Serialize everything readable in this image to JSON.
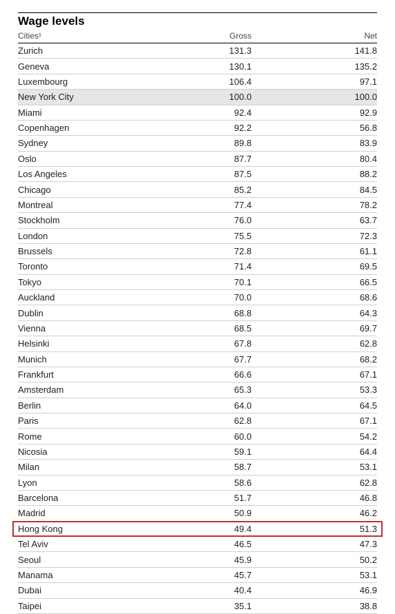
{
  "title": "Wage levels",
  "columns": {
    "city": "Cities¹",
    "gross": "Gross",
    "net": "Net"
  },
  "highlight_bg": "#e6e6e6",
  "box_border": "#c03030",
  "rows": [
    {
      "city": "Zurich",
      "gross": "131.3",
      "net": "141.8"
    },
    {
      "city": "Geneva",
      "gross": "130.1",
      "net": "135.2"
    },
    {
      "city": "Luxembourg",
      "gross": "106.4",
      "net": "97.1"
    },
    {
      "city": "New York City",
      "gross": "100.0",
      "net": "100.0",
      "highlighted": true
    },
    {
      "city": "Miami",
      "gross": "92.4",
      "net": "92.9"
    },
    {
      "city": "Copenhagen",
      "gross": "92.2",
      "net": "56.8"
    },
    {
      "city": "Sydney",
      "gross": "89.8",
      "net": "83.9"
    },
    {
      "city": "Oslo",
      "gross": "87.7",
      "net": "80.4"
    },
    {
      "city": "Los Angeles",
      "gross": "87.5",
      "net": "88.2"
    },
    {
      "city": "Chicago",
      "gross": "85.2",
      "net": "84.5"
    },
    {
      "city": "Montreal",
      "gross": "77.4",
      "net": "78.2"
    },
    {
      "city": "Stockholm",
      "gross": "76.0",
      "net": "63.7"
    },
    {
      "city": "London",
      "gross": "75.5",
      "net": "72.3"
    },
    {
      "city": "Brussels",
      "gross": "72.8",
      "net": "61.1"
    },
    {
      "city": "Toronto",
      "gross": "71.4",
      "net": "69.5"
    },
    {
      "city": "Tokyo",
      "gross": "70.1",
      "net": "66.5"
    },
    {
      "city": "Auckland",
      "gross": "70.0",
      "net": "68.6"
    },
    {
      "city": "Dublin",
      "gross": "68.8",
      "net": "64.3"
    },
    {
      "city": "Vienna",
      "gross": "68.5",
      "net": "69.7"
    },
    {
      "city": "Helsinki",
      "gross": "67.8",
      "net": "62.8"
    },
    {
      "city": "Munich",
      "gross": "67.7",
      "net": "68.2"
    },
    {
      "city": "Frankfurt",
      "gross": "66.6",
      "net": "67.1"
    },
    {
      "city": "Amsterdam",
      "gross": "65.3",
      "net": "53.3"
    },
    {
      "city": "Berlin",
      "gross": "64.0",
      "net": "64.5"
    },
    {
      "city": "Paris",
      "gross": "62.8",
      "net": "67.1"
    },
    {
      "city": "Rome",
      "gross": "60.0",
      "net": "54.2"
    },
    {
      "city": "Nicosia",
      "gross": "59.1",
      "net": "64.4"
    },
    {
      "city": "Milan",
      "gross": "58.7",
      "net": "53.1"
    },
    {
      "city": "Lyon",
      "gross": "58.6",
      "net": "62.8"
    },
    {
      "city": "Barcelona",
      "gross": "51.7",
      "net": "46.8"
    },
    {
      "city": "Madrid",
      "gross": "50.9",
      "net": "46.2"
    },
    {
      "city": "Hong Kong",
      "gross": "49.4",
      "net": "51.3",
      "boxed": true
    },
    {
      "city": "Tel Aviv",
      "gross": "46.5",
      "net": "47.3"
    },
    {
      "city": "Seoul",
      "gross": "45.9",
      "net": "50.2"
    },
    {
      "city": "Manama",
      "gross": "45.7",
      "net": "53.1"
    },
    {
      "city": "Dubai",
      "gross": "40.4",
      "net": "46.9"
    },
    {
      "city": "Taipei",
      "gross": "35.1",
      "net": "38.8"
    }
  ]
}
